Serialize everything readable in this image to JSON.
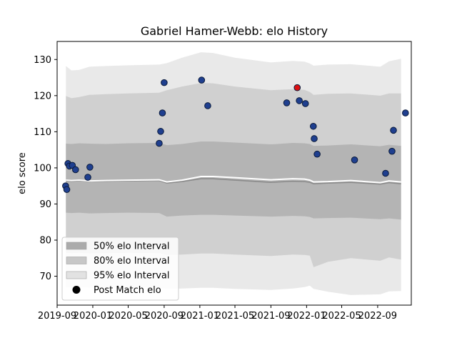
{
  "chart_data": {
    "type": "scatter",
    "title": "Gabriel Hamer-Webb: elo History",
    "xlabel": "",
    "ylabel": "elo score",
    "xlim": [
      "2019-09-01",
      "2022-12-25"
    ],
    "ylim": [
      62,
      135
    ],
    "x_ticks": [
      "2019-09",
      "2020-01",
      "2020-05",
      "2020-09",
      "2021-01",
      "2021-05",
      "2021-09",
      "2022-01",
      "2022-05",
      "2022-09"
    ],
    "y_ticks": [
      70,
      80,
      90,
      100,
      110,
      120,
      130
    ],
    "grid": false,
    "legend_position": "lower-left",
    "colors": {
      "band_50": "#ababab",
      "band_80": "#c7c7c7",
      "band_95": "#e2e2e2",
      "mean_line": "#ffffff",
      "median_line": "#8a8a8a",
      "point": "#1f3f8f",
      "point_edge": "#0a1a3a",
      "highlight_point": "#dd1111"
    },
    "bands": {
      "dates": [
        "2019-10-01",
        "2019-10-20",
        "2019-11-15",
        "2019-12-20",
        "2020-02-15",
        "2020-05-01",
        "2020-08-15",
        "2020-09-10",
        "2020-11-01",
        "2021-01-05",
        "2021-02-15",
        "2021-05-01",
        "2021-09-01",
        "2021-11-15",
        "2021-12-25",
        "2022-01-12",
        "2022-01-25",
        "2022-03-15",
        "2022-06-01",
        "2022-09-10",
        "2022-10-10",
        "2022-11-20"
      ],
      "mean": [
        96.6,
        96.5,
        96.6,
        96.4,
        96.5,
        96.6,
        96.7,
        96.1,
        96.6,
        97.6,
        97.6,
        97.3,
        96.7,
        97.0,
        96.9,
        96.6,
        96.1,
        96.2,
        96.5,
        95.9,
        96.4,
        96.1
      ],
      "median": [
        96.4,
        96.3,
        96.4,
        96.3,
        96.3,
        96.4,
        96.5,
        95.8,
        96.2,
        97.0,
        97.0,
        96.6,
        96.0,
        96.3,
        96.2,
        96.0,
        95.6,
        95.8,
        96.0,
        95.5,
        95.9,
        95.6
      ],
      "p50_low": [
        87.6,
        87.5,
        87.6,
        87.4,
        87.5,
        87.6,
        87.5,
        86.5,
        86.8,
        87.0,
        87.0,
        86.8,
        86.5,
        86.7,
        86.6,
        86.4,
        86.0,
        86.1,
        86.2,
        85.8,
        86.0,
        85.7
      ],
      "p50_high": [
        106.7,
        106.6,
        106.8,
        106.7,
        106.6,
        106.8,
        106.9,
        106.3,
        106.6,
        107.3,
        107.3,
        107.0,
        106.5,
        106.9,
        106.8,
        106.6,
        106.1,
        106.2,
        106.5,
        106.0,
        106.4,
        106.1
      ],
      "p80_low": [
        76.5,
        76.4,
        76.5,
        76.3,
        76.4,
        76.5,
        76.4,
        75.9,
        76.0,
        76.3,
        76.3,
        76.0,
        75.6,
        76.0,
        75.9,
        75.7,
        72.5,
        74.0,
        75.0,
        74.3,
        75.2,
        74.6
      ],
      "p80_high": [
        119.9,
        119.3,
        119.6,
        120.2,
        120.4,
        120.6,
        120.8,
        121.5,
        122.5,
        123.5,
        123.4,
        122.5,
        121.5,
        121.8,
        121.6,
        121.0,
        120.2,
        120.5,
        120.6,
        120.0,
        120.6,
        120.6
      ],
      "p95_low": [
        67.0,
        66.8,
        67.0,
        66.8,
        66.9,
        67.0,
        66.8,
        66.5,
        66.6,
        66.8,
        66.8,
        66.5,
        66.2,
        66.6,
        67.0,
        67.4,
        66.5,
        65.7,
        64.8,
        65.0,
        65.8,
        65.9
      ],
      "p95_high": [
        128.2,
        127.0,
        127.1,
        128.0,
        128.2,
        128.4,
        128.6,
        129.0,
        130.5,
        132.0,
        131.8,
        130.5,
        129.2,
        129.6,
        129.4,
        128.9,
        128.3,
        128.6,
        128.7,
        128.0,
        129.5,
        130.2
      ]
    },
    "points": [
      {
        "x": "2019-09-30",
        "y": 95.0
      },
      {
        "x": "2019-10-04",
        "y": 94.0
      },
      {
        "x": "2019-10-08",
        "y": 101.2
      },
      {
        "x": "2019-10-13",
        "y": 100.5
      },
      {
        "x": "2019-10-23",
        "y": 100.7
      },
      {
        "x": "2019-11-03",
        "y": 99.5
      },
      {
        "x": "2019-12-15",
        "y": 97.4
      },
      {
        "x": "2019-12-22",
        "y": 100.2
      },
      {
        "x": "2020-08-15",
        "y": 106.8
      },
      {
        "x": "2020-08-20",
        "y": 110.1
      },
      {
        "x": "2020-08-26",
        "y": 115.2
      },
      {
        "x": "2020-09-01",
        "y": 123.6
      },
      {
        "x": "2021-01-07",
        "y": 124.3
      },
      {
        "x": "2021-01-28",
        "y": 117.2
      },
      {
        "x": "2021-10-25",
        "y": 118.0
      },
      {
        "x": "2021-11-30",
        "y": 122.2,
        "highlight": true
      },
      {
        "x": "2021-12-07",
        "y": 118.6
      },
      {
        "x": "2021-12-28",
        "y": 117.8
      },
      {
        "x": "2022-01-24",
        "y": 111.5
      },
      {
        "x": "2022-01-27",
        "y": 108.1
      },
      {
        "x": "2022-02-06",
        "y": 103.8
      },
      {
        "x": "2022-06-14",
        "y": 102.2
      },
      {
        "x": "2022-09-28",
        "y": 98.5
      },
      {
        "x": "2022-10-20",
        "y": 104.6
      },
      {
        "x": "2022-10-25",
        "y": 110.4
      },
      {
        "x": "2022-12-05",
        "y": 115.2
      }
    ],
    "legend": [
      {
        "label": "50% elo Interval",
        "kind": "band_50"
      },
      {
        "label": "80% elo Interval",
        "kind": "band_80"
      },
      {
        "label": "95% elo Interval",
        "kind": "band_95"
      },
      {
        "label": "Post Match elo",
        "kind": "marker"
      }
    ]
  }
}
